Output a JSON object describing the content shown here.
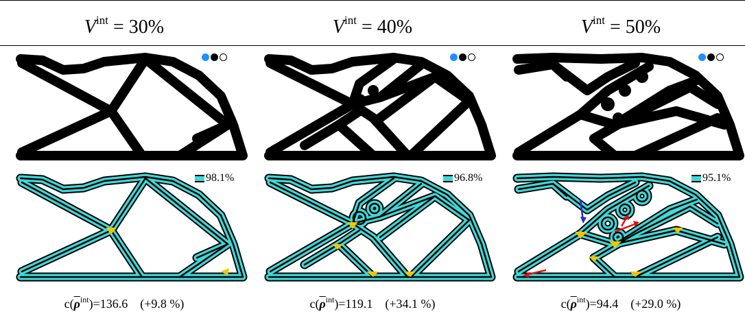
{
  "header": {
    "var_symbol": "V",
    "superscript": "int",
    "columns": [
      {
        "equals": "= 30%"
      },
      {
        "equals": "= 40%"
      },
      {
        "equals": "= 50%"
      }
    ]
  },
  "legend_values": [
    "98.1%",
    "96.8%",
    "95.1%"
  ],
  "captions": [
    {
      "prefix": "c(",
      "rho": "ρ",
      "sup": "int",
      "value": ")=136.6",
      "delta": "(+9.8 %)"
    },
    {
      "prefix": "c(",
      "rho": "ρ",
      "sup": "int",
      "value": ")=119.1",
      "delta": "(+34.1 %)"
    },
    {
      "prefix": "c(",
      "rho": "ρ",
      "sup": "int",
      "value": ")=94.4",
      "delta": "(+29.0 %)"
    }
  ],
  "colors": {
    "structure": "#000000",
    "coating": "#3fd8d8",
    "infill": "#f5c400",
    "dot_blue": "#1e90ff",
    "arrow_blue": "#1f2fd6",
    "arrow_red": "#e01010"
  }
}
